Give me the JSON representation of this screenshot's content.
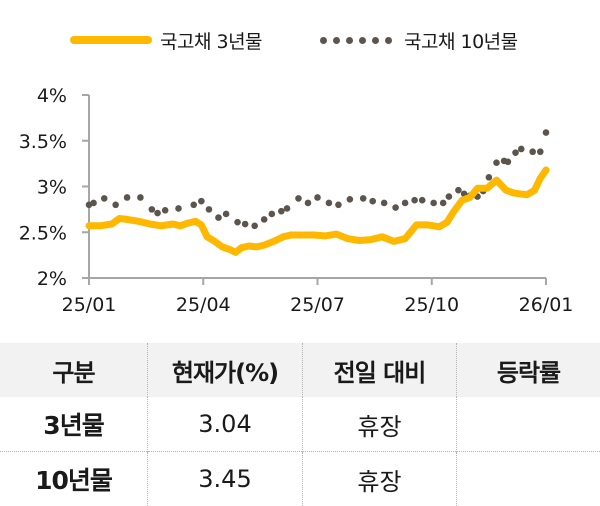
{
  "legend": {
    "series_3y": "국고채 3년물",
    "series_10y": "국고채 10년물"
  },
  "colors": {
    "series_3y": "#FFB800",
    "series_10y": "#5B554E",
    "axis": "#A6A6A6",
    "table_header_bg": "#F2F2F2"
  },
  "chart_data": {
    "type": "line",
    "title": "",
    "xlabel": "",
    "ylabel": "",
    "ylim": [
      2,
      4
    ],
    "yticks": [
      "4%",
      "3.5%",
      "3%",
      "2.5%",
      "2%"
    ],
    "ytick_values": [
      4,
      3.5,
      3,
      2.5,
      2
    ],
    "xticks": [
      "25/01",
      "25/04",
      "25/07",
      "25/10",
      "26/01"
    ],
    "grid": false,
    "legend_position": "top",
    "x_domain": [
      0,
      12
    ],
    "series": [
      {
        "name": "국고채 3년물",
        "style": "solid-thick-line",
        "x": [
          0,
          0.3,
          0.6,
          0.8,
          1.0,
          1.3,
          1.6,
          1.9,
          2.2,
          2.4,
          2.6,
          2.8,
          2.95,
          3.1,
          3.3,
          3.5,
          3.7,
          3.85,
          4.0,
          4.2,
          4.4,
          4.6,
          4.85,
          5.1,
          5.3,
          5.6,
          5.9,
          6.2,
          6.5,
          6.8,
          7.1,
          7.4,
          7.7,
          8.0,
          8.3,
          8.6,
          8.9,
          9.2,
          9.4,
          9.6,
          9.8,
          10.0,
          10.2,
          10.45,
          10.7,
          10.95,
          11.15,
          11.3,
          11.5,
          11.7,
          11.85,
          12.0
        ],
        "values": [
          2.57,
          2.57,
          2.59,
          2.65,
          2.64,
          2.62,
          2.59,
          2.57,
          2.59,
          2.57,
          2.6,
          2.62,
          2.58,
          2.45,
          2.4,
          2.34,
          2.31,
          2.28,
          2.33,
          2.35,
          2.34,
          2.36,
          2.4,
          2.45,
          2.47,
          2.47,
          2.47,
          2.46,
          2.48,
          2.43,
          2.41,
          2.42,
          2.45,
          2.4,
          2.43,
          2.58,
          2.58,
          2.56,
          2.61,
          2.74,
          2.85,
          2.88,
          2.98,
          2.98,
          3.07,
          2.96,
          2.93,
          2.92,
          2.91,
          2.96,
          3.09,
          3.18
        ]
      },
      {
        "name": "국고채 10년물",
        "style": "dotted",
        "x": [
          0,
          0.12,
          0.4,
          0.7,
          1.0,
          1.35,
          1.65,
          1.8,
          2.0,
          2.35,
          2.75,
          2.95,
          3.15,
          3.4,
          3.6,
          3.9,
          4.1,
          4.35,
          4.6,
          4.8,
          5.05,
          5.2,
          5.5,
          5.75,
          6.0,
          6.3,
          6.55,
          6.85,
          7.2,
          7.45,
          7.75,
          8.05,
          8.3,
          8.55,
          8.75,
          9.05,
          9.3,
          9.45,
          9.7,
          9.85,
          10.0,
          10.2,
          10.35,
          10.5,
          10.7,
          10.9,
          11.0,
          11.2,
          11.35,
          11.65,
          11.85,
          12.0
        ],
        "values": [
          2.8,
          2.82,
          2.87,
          2.8,
          2.88,
          2.88,
          2.75,
          2.71,
          2.74,
          2.76,
          2.8,
          2.84,
          2.75,
          2.66,
          2.7,
          2.61,
          2.59,
          2.57,
          2.64,
          2.7,
          2.73,
          2.76,
          2.87,
          2.82,
          2.88,
          2.82,
          2.8,
          2.86,
          2.87,
          2.84,
          2.82,
          2.77,
          2.82,
          2.85,
          2.85,
          2.82,
          2.82,
          2.89,
          2.96,
          2.92,
          2.9,
          2.89,
          2.95,
          3.1,
          3.26,
          3.28,
          3.27,
          3.37,
          3.41,
          3.38,
          3.38,
          3.59
        ]
      }
    ]
  },
  "table": {
    "headers": [
      "구분",
      "현재가(%)",
      "전일 대비",
      "등락률"
    ],
    "rows": [
      {
        "label": "3년물",
        "price": "3.04",
        "change": "휴장",
        "rate": ""
      },
      {
        "label": "10년물",
        "price": "3.45",
        "change": "휴장",
        "rate": ""
      }
    ]
  }
}
